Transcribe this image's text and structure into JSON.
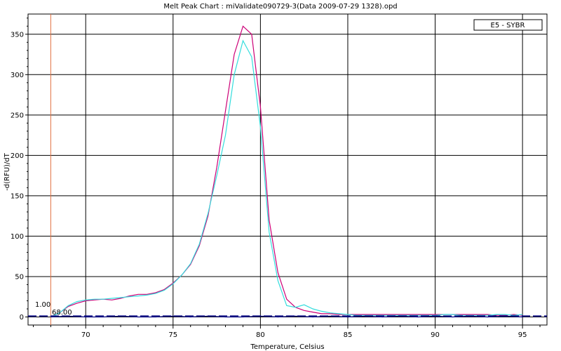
{
  "chart_data": {
    "type": "line",
    "title": "Melt Peak Chart : miValidate090729-3(Data 2009-07-29 1328).opd",
    "xlabel": "Temperature, Celsius",
    "ylabel": "-d(RFU)/dT",
    "xlim": [
      66.7,
      96.4
    ],
    "ylim": [
      -10,
      375
    ],
    "xticks": [
      70,
      75,
      80,
      85,
      90,
      95
    ],
    "yticks": [
      0,
      50,
      100,
      150,
      200,
      250,
      300,
      350
    ],
    "grid": true,
    "legend": {
      "position": "top-right",
      "label": "E5 - SYBR"
    },
    "threshold": {
      "value": 1.0,
      "label": "1.00",
      "color": "#000080"
    },
    "start_marker": {
      "x": 68.0,
      "label": "68.00",
      "color": "#e07040"
    },
    "series": [
      {
        "color": "#cc0077",
        "x": [
          68.0,
          68.5,
          69.0,
          69.5,
          70.0,
          70.5,
          71.0,
          71.5,
          72.0,
          72.5,
          73.0,
          73.5,
          74.0,
          74.5,
          75.0,
          75.5,
          76.0,
          76.5,
          77.0,
          77.5,
          78.0,
          78.5,
          79.0,
          79.5,
          80.0,
          80.5,
          81.0,
          81.5,
          82.0,
          82.5,
          83.0,
          83.5,
          84.0,
          84.5,
          85.0,
          85.5,
          86.0,
          86.5,
          87.0,
          87.5,
          88.0,
          88.5,
          89.0,
          89.5,
          90.0,
          90.5,
          91.0,
          91.5,
          92.0,
          92.5,
          93.0,
          93.5,
          94.0,
          94.5,
          95.0
        ],
        "y": [
          0,
          5,
          13,
          17,
          20,
          21,
          22,
          21,
          23,
          26,
          28,
          28,
          30,
          34,
          42,
          52,
          65,
          88,
          125,
          185,
          255,
          325,
          360,
          350,
          260,
          120,
          55,
          22,
          12,
          8,
          6,
          4,
          4,
          3,
          3,
          3,
          3,
          3,
          3,
          3,
          3,
          3,
          3,
          3,
          3,
          3,
          3,
          3,
          3,
          3,
          3,
          2,
          2,
          3,
          2
        ]
      },
      {
        "color": "#33dddd",
        "x": [
          68.0,
          68.5,
          69.0,
          69.5,
          70.0,
          70.5,
          71.0,
          71.5,
          72.0,
          72.5,
          73.0,
          73.5,
          74.0,
          74.5,
          75.0,
          75.5,
          76.0,
          76.5,
          77.0,
          77.5,
          78.0,
          78.5,
          79.0,
          79.5,
          80.0,
          80.5,
          81.0,
          81.5,
          82.0,
          82.5,
          83.0,
          83.5,
          84.0,
          84.5,
          85.0,
          85.5,
          86.0,
          86.5,
          87.0,
          87.5,
          88.0,
          88.5,
          89.0,
          89.5,
          90.0,
          90.5,
          91.0,
          91.5,
          92.0,
          92.5,
          93.0,
          93.5,
          94.0,
          94.5,
          95.0
        ],
        "y": [
          0,
          5,
          14,
          19,
          21,
          22,
          22,
          23,
          24,
          25,
          26,
          27,
          29,
          33,
          41,
          52,
          66,
          90,
          128,
          175,
          225,
          300,
          342,
          322,
          235,
          105,
          45,
          14,
          12,
          15,
          10,
          7,
          5,
          4,
          3,
          2,
          2,
          2,
          2,
          2,
          2,
          2,
          2,
          2,
          2,
          3,
          3,
          2,
          2,
          2,
          2,
          3,
          3,
          2,
          3
        ]
      },
      {
        "color": "#000080",
        "x": [
          68.0,
          69.0,
          70.0,
          71.0,
          72.0,
          73.0,
          74.0,
          75.0,
          76.0,
          77.0,
          78.0,
          79.0,
          80.0,
          81.0,
          82.0,
          83.0,
          84.0,
          85.0,
          86.0,
          87.0,
          88.0,
          89.0,
          90.0,
          91.0,
          92.0,
          93.0,
          94.0,
          95.0
        ],
        "y": [
          0,
          1,
          0,
          0,
          1,
          0,
          0,
          1,
          0,
          1,
          0,
          0,
          1,
          0,
          1,
          0,
          1,
          0,
          1,
          0,
          1,
          0,
          1,
          0,
          1,
          0,
          1,
          0
        ]
      }
    ]
  }
}
